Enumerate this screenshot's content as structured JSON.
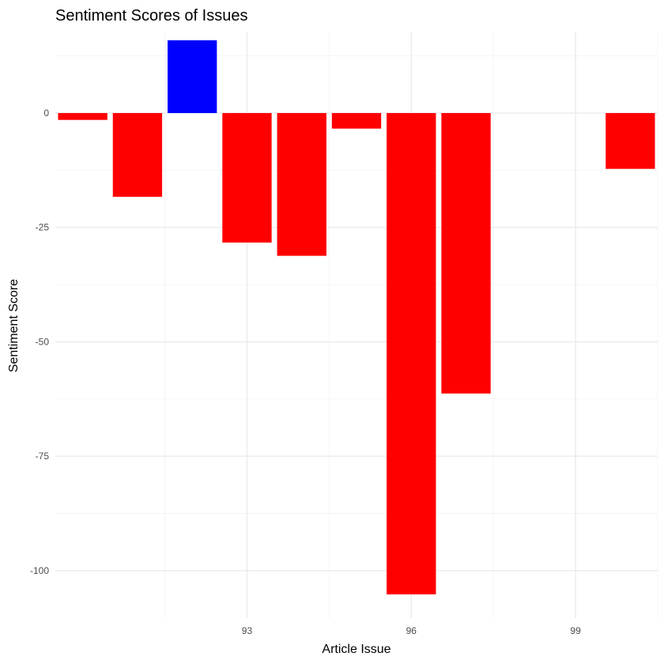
{
  "chart_data": {
    "type": "bar",
    "title": "Sentiment Scores of Issues",
    "xlabel": "Article Issue",
    "ylabel": "Sentiment Score",
    "x": [
      90,
      91,
      92,
      93,
      94,
      95,
      96,
      97,
      98,
      100
    ],
    "values": [
      -1.5,
      -18.3,
      15.9,
      -28.3,
      -31.2,
      -3.4,
      -105.2,
      -61.3,
      0,
      -12.2
    ],
    "positive_color": "#0000ff",
    "negative_color": "#ff0000",
    "xlim": [
      89.5,
      100.5
    ],
    "ylim": [
      -110.4,
      17.8
    ],
    "x_ticks": [
      93,
      96,
      99
    ],
    "x_tick_labels": [
      "93",
      "96",
      "99"
    ],
    "y_ticks": [
      0,
      -25,
      -50,
      -75,
      -100
    ],
    "y_tick_labels": [
      "0",
      "-25",
      "-50",
      "-75",
      "-100"
    ],
    "grid": true,
    "legend": "none"
  }
}
